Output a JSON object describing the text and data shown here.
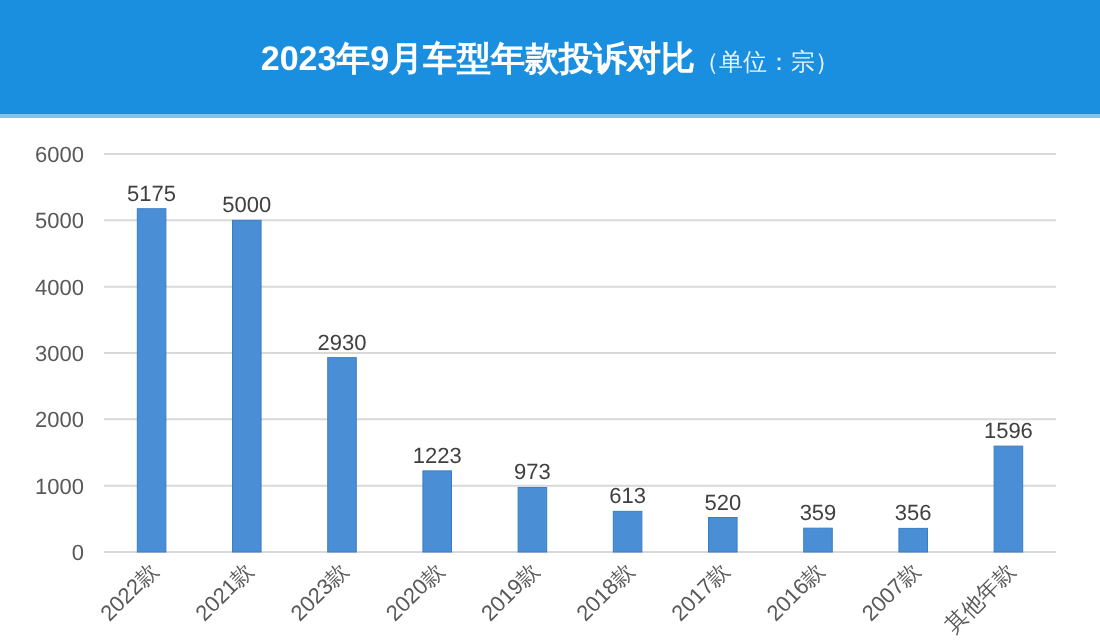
{
  "chart_data": {
    "type": "bar",
    "title": "2023年9月车型年款投诉对比",
    "subtitle": "（单位：宗）",
    "categories": [
      "2022款",
      "2021款",
      "2023款",
      "2020款",
      "2019款",
      "2018款",
      "2017款",
      "2016款",
      "2007款",
      "其他年款"
    ],
    "values": [
      5175,
      5000,
      2930,
      1223,
      973,
      613,
      520,
      359,
      356,
      1596
    ],
    "color": "#4a8fd6",
    "ylim": [
      0,
      6000
    ],
    "yticks": [
      0,
      1000,
      2000,
      3000,
      4000,
      5000,
      6000
    ],
    "grid": "y",
    "data_labels": true
  }
}
